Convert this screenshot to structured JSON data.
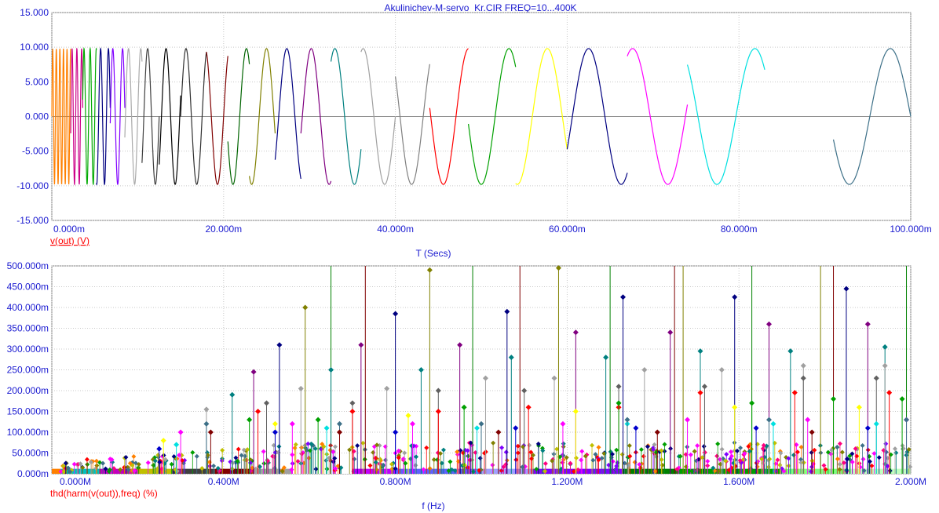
{
  "window_title": "Akulinichev-M-servo_Kr.CIR FREQ=10...400K",
  "chart_data": [
    {
      "type": "line",
      "title": "Akulinichev-M-servo_Kr.CIR FREQ=10...400K",
      "xlabel": "T (Secs)",
      "ylabel": "v(out) (V)",
      "xlim": [
        0,
        0.1
      ],
      "ylim": [
        -15,
        15
      ],
      "x_tick_labels": [
        "0.000m",
        "20.000m",
        "40.000m",
        "60.000m",
        "80.000m",
        "100.000m"
      ],
      "y_tick_labels": [
        "15.000",
        "10.000",
        "5.000",
        "0.000",
        "-5.000",
        "-10.000",
        "-15.000"
      ],
      "grid": true,
      "series": [
        {
          "amplitude": 9.8,
          "segments": [
            {
              "t_start": 0.0,
              "t_end": 0.0022,
              "freq": 2400,
              "color": "#ff8000"
            },
            {
              "t_start": 0.0022,
              "t_end": 0.0036,
              "freq": 1800,
              "color": "#cc0088"
            },
            {
              "t_start": 0.0036,
              "t_end": 0.0052,
              "freq": 1400,
              "color": "#00aa00"
            },
            {
              "t_start": 0.0052,
              "t_end": 0.0068,
              "freq": 1100,
              "color": "#000080"
            },
            {
              "t_start": 0.0068,
              "t_end": 0.0085,
              "freq": 880,
              "color": "#8000ff"
            },
            {
              "t_start": 0.0085,
              "t_end": 0.0105,
              "freq": 700,
              "color": "#aaaaaa"
            },
            {
              "t_start": 0.0105,
              "t_end": 0.0125,
              "freq": 560,
              "color": "#404040"
            },
            {
              "t_start": 0.0125,
              "t_end": 0.015,
              "freq": 470,
              "color": "#000000"
            },
            {
              "t_start": 0.015,
              "t_end": 0.018,
              "freq": 400,
              "color": "#303030"
            },
            {
              "t_start": 0.018,
              "t_end": 0.0205,
              "freq": 350,
              "color": "#800000"
            },
            {
              "t_start": 0.0205,
              "t_end": 0.023,
              "freq": 320,
              "color": "#006400"
            },
            {
              "t_start": 0.023,
              "t_end": 0.026,
              "freq": 290,
              "color": "#808000"
            },
            {
              "t_start": 0.026,
              "t_end": 0.029,
              "freq": 265,
              "color": "#000080"
            },
            {
              "t_start": 0.029,
              "t_end": 0.0325,
              "freq": 240,
              "color": "#800080"
            },
            {
              "t_start": 0.0325,
              "t_end": 0.036,
              "freq": 220,
              "color": "#008080"
            },
            {
              "t_start": 0.036,
              "t_end": 0.04,
              "freq": 200,
              "color": "#a0a0a0"
            },
            {
              "t_start": 0.04,
              "t_end": 0.044,
              "freq": 185,
              "color": "#808080"
            },
            {
              "t_start": 0.044,
              "t_end": 0.0485,
              "freq": 170,
              "color": "#ff0000"
            },
            {
              "t_start": 0.0485,
              "t_end": 0.054,
              "freq": 155,
              "color": "#00a000"
            },
            {
              "t_start": 0.054,
              "t_end": 0.06,
              "freq": 143,
              "color": "#ffff00"
            },
            {
              "t_start": 0.06,
              "t_end": 0.067,
              "freq": 132,
              "color": "#000080"
            },
            {
              "t_start": 0.067,
              "t_end": 0.074,
              "freq": 122,
              "color": "#ff00ff"
            },
            {
              "t_start": 0.074,
              "t_end": 0.083,
              "freq": 113,
              "color": "#00e0e0"
            },
            {
              "t_start": 0.091,
              "t_end": 0.1,
              "freq": 105,
              "color": "#3d7088"
            }
          ]
        }
      ]
    },
    {
      "type": "scatter",
      "xlabel": "f (Hz)",
      "ylabel": "thd(harm(v(out)),freq) (%)",
      "xlim": [
        0,
        2000000
      ],
      "ylim": [
        0,
        0.5
      ],
      "x_tick_labels": [
        "0.000M",
        "0.400M",
        "0.800M",
        "1.200M",
        "1.600M",
        "2.000M"
      ],
      "y_tick_labels": [
        "500.000m",
        "450.000m",
        "400.000m",
        "350.000m",
        "300.000m",
        "250.000m",
        "200.000m",
        "150.000m",
        "100.000m",
        "50.000m",
        "0.000m"
      ],
      "grid": true,
      "stems_over_range": [
        {
          "x": 650000,
          "y": 0.5,
          "color": "#008000"
        },
        {
          "x": 730000,
          "y": 0.5,
          "color": "#800000"
        },
        {
          "x": 980000,
          "y": 0.5,
          "color": "#008000"
        },
        {
          "x": 1090000,
          "y": 0.5,
          "color": "#800000"
        },
        {
          "x": 1300000,
          "y": 0.5,
          "color": "#008000"
        },
        {
          "x": 1450000,
          "y": 0.5,
          "color": "#800000"
        },
        {
          "x": 1470000,
          "y": 0.5,
          "color": "#808000"
        },
        {
          "x": 1630000,
          "y": 0.5,
          "color": "#008000"
        },
        {
          "x": 1790000,
          "y": 0.5,
          "color": "#808000"
        },
        {
          "x": 1820000,
          "y": 0.5,
          "color": "#800000"
        },
        {
          "x": 1990000,
          "y": 0.5,
          "color": "#008000"
        }
      ],
      "stems": [
        {
          "x": 530000,
          "y": 0.31,
          "color": "#000080"
        },
        {
          "x": 590000,
          "y": 0.4,
          "color": "#808000"
        },
        {
          "x": 720000,
          "y": 0.31,
          "color": "#800080"
        },
        {
          "x": 800000,
          "y": 0.385,
          "color": "#000080"
        },
        {
          "x": 880000,
          "y": 0.49,
          "color": "#808000"
        },
        {
          "x": 950000,
          "y": 0.31,
          "color": "#800080"
        },
        {
          "x": 1060000,
          "y": 0.39,
          "color": "#000080"
        },
        {
          "x": 1180000,
          "y": 0.495,
          "color": "#808000"
        },
        {
          "x": 1220000,
          "y": 0.34,
          "color": "#800080"
        },
        {
          "x": 1330000,
          "y": 0.425,
          "color": "#000080"
        },
        {
          "x": 1440000,
          "y": 0.34,
          "color": "#800080"
        },
        {
          "x": 1590000,
          "y": 0.425,
          "color": "#000080"
        },
        {
          "x": 1670000,
          "y": 0.36,
          "color": "#800080"
        },
        {
          "x": 1850000,
          "y": 0.445,
          "color": "#000080"
        },
        {
          "x": 1900000,
          "y": 0.36,
          "color": "#800080"
        },
        {
          "x": 470000,
          "y": 0.245,
          "color": "#800080"
        },
        {
          "x": 420000,
          "y": 0.19,
          "color": "#008080"
        },
        {
          "x": 650000,
          "y": 0.25,
          "color": "#008080"
        },
        {
          "x": 860000,
          "y": 0.25,
          "color": "#008080"
        },
        {
          "x": 1070000,
          "y": 0.28,
          "color": "#008080"
        },
        {
          "x": 1290000,
          "y": 0.28,
          "color": "#008080"
        },
        {
          "x": 1510000,
          "y": 0.295,
          "color": "#008080"
        },
        {
          "x": 1720000,
          "y": 0.295,
          "color": "#008080"
        },
        {
          "x": 1940000,
          "y": 0.305,
          "color": "#008080"
        },
        {
          "x": 360000,
          "y": 0.155,
          "color": "#a0a0a0"
        },
        {
          "x": 580000,
          "y": 0.205,
          "color": "#a0a0a0"
        },
        {
          "x": 780000,
          "y": 0.205,
          "color": "#a0a0a0"
        },
        {
          "x": 1010000,
          "y": 0.23,
          "color": "#a0a0a0"
        },
        {
          "x": 1170000,
          "y": 0.23,
          "color": "#a0a0a0"
        },
        {
          "x": 1380000,
          "y": 0.25,
          "color": "#a0a0a0"
        },
        {
          "x": 1560000,
          "y": 0.25,
          "color": "#a0a0a0"
        },
        {
          "x": 1750000,
          "y": 0.26,
          "color": "#a0a0a0"
        },
        {
          "x": 1940000,
          "y": 0.26,
          "color": "#a0a0a0"
        },
        {
          "x": 500000,
          "y": 0.17,
          "color": "#606060"
        },
        {
          "x": 700000,
          "y": 0.17,
          "color": "#606060"
        },
        {
          "x": 900000,
          "y": 0.2,
          "color": "#606060"
        },
        {
          "x": 1100000,
          "y": 0.2,
          "color": "#606060"
        },
        {
          "x": 1320000,
          "y": 0.21,
          "color": "#606060"
        },
        {
          "x": 1520000,
          "y": 0.21,
          "color": "#606060"
        },
        {
          "x": 1750000,
          "y": 0.23,
          "color": "#606060"
        },
        {
          "x": 1920000,
          "y": 0.23,
          "color": "#606060"
        },
        {
          "x": 480000,
          "y": 0.15,
          "color": "#ff0000"
        },
        {
          "x": 700000,
          "y": 0.15,
          "color": "#ff0000"
        },
        {
          "x": 900000,
          "y": 0.15,
          "color": "#ff0000"
        },
        {
          "x": 1110000,
          "y": 0.16,
          "color": "#ff0000"
        },
        {
          "x": 1320000,
          "y": 0.16,
          "color": "#ff0000"
        },
        {
          "x": 1510000,
          "y": 0.195,
          "color": "#ff0000"
        },
        {
          "x": 1730000,
          "y": 0.195,
          "color": "#ff0000"
        },
        {
          "x": 1950000,
          "y": 0.195,
          "color": "#ff0000"
        },
        {
          "x": 460000,
          "y": 0.13,
          "color": "#00a000"
        },
        {
          "x": 620000,
          "y": 0.13,
          "color": "#00a000"
        },
        {
          "x": 960000,
          "y": 0.16,
          "color": "#00a000"
        },
        {
          "x": 1320000,
          "y": 0.17,
          "color": "#00a000"
        },
        {
          "x": 1630000,
          "y": 0.17,
          "color": "#00a000"
        },
        {
          "x": 1820000,
          "y": 0.18,
          "color": "#00a000"
        },
        {
          "x": 1980000,
          "y": 0.18,
          "color": "#00a000"
        },
        {
          "x": 260000,
          "y": 0.08,
          "color": "#ffff00"
        },
        {
          "x": 520000,
          "y": 0.12,
          "color": "#ffff00"
        },
        {
          "x": 830000,
          "y": 0.14,
          "color": "#ffff00"
        },
        {
          "x": 1220000,
          "y": 0.15,
          "color": "#ffff00"
        },
        {
          "x": 1590000,
          "y": 0.16,
          "color": "#ffff00"
        },
        {
          "x": 1880000,
          "y": 0.16,
          "color": "#ffff00"
        },
        {
          "x": 300000,
          "y": 0.1,
          "color": "#ff00ff"
        },
        {
          "x": 560000,
          "y": 0.12,
          "color": "#ff00ff"
        },
        {
          "x": 840000,
          "y": 0.12,
          "color": "#ff00ff"
        },
        {
          "x": 1190000,
          "y": 0.12,
          "color": "#ff00ff"
        },
        {
          "x": 1480000,
          "y": 0.13,
          "color": "#ff00ff"
        },
        {
          "x": 1760000,
          "y": 0.13,
          "color": "#ff00ff"
        },
        {
          "x": 1990000,
          "y": 0.13,
          "color": "#ff00ff"
        },
        {
          "x": 290000,
          "y": 0.07,
          "color": "#00e0e0"
        },
        {
          "x": 640000,
          "y": 0.11,
          "color": "#00e0e0"
        },
        {
          "x": 990000,
          "y": 0.11,
          "color": "#00e0e0"
        },
        {
          "x": 1340000,
          "y": 0.12,
          "color": "#00e0e0"
        },
        {
          "x": 1680000,
          "y": 0.12,
          "color": "#00e0e0"
        },
        {
          "x": 1920000,
          "y": 0.12,
          "color": "#00e0e0"
        },
        {
          "x": 360000,
          "y": 0.12,
          "color": "#3d7088"
        },
        {
          "x": 670000,
          "y": 0.12,
          "color": "#3d7088"
        },
        {
          "x": 1000000,
          "y": 0.12,
          "color": "#3d7088"
        },
        {
          "x": 1340000,
          "y": 0.13,
          "color": "#3d7088"
        },
        {
          "x": 1670000,
          "y": 0.13,
          "color": "#3d7088"
        },
        {
          "x": 1990000,
          "y": 0.13,
          "color": "#3d7088"
        },
        {
          "x": 250000,
          "y": 0.06,
          "color": "#0000cc"
        },
        {
          "x": 520000,
          "y": 0.1,
          "color": "#0000cc"
        },
        {
          "x": 800000,
          "y": 0.1,
          "color": "#0000cc"
        },
        {
          "x": 1080000,
          "y": 0.11,
          "color": "#0000cc"
        },
        {
          "x": 1360000,
          "y": 0.11,
          "color": "#0000cc"
        },
        {
          "x": 1640000,
          "y": 0.11,
          "color": "#0000cc"
        },
        {
          "x": 1900000,
          "y": 0.11,
          "color": "#0000cc"
        },
        {
          "x": 370000,
          "y": 0.1,
          "color": "#800000"
        },
        {
          "x": 670000,
          "y": 0.1,
          "color": "#800000"
        },
        {
          "x": 1040000,
          "y": 0.1,
          "color": "#800000"
        },
        {
          "x": 1410000,
          "y": 0.1,
          "color": "#800000"
        },
        {
          "x": 1770000,
          "y": 0.1,
          "color": "#800000"
        }
      ],
      "noise": {
        "y_min": 0.005,
        "y_max": 0.075,
        "count": 520,
        "colors": [
          "#ff00ff",
          "#ff8000",
          "#c0c000",
          "#808000",
          "#000080",
          "#3d7088",
          "#ff0000",
          "#8000ff",
          "#008080",
          "#a0a0a0",
          "#00a000",
          "#ff0080"
        ]
      },
      "bottom_band": [
        {
          "f_start": 0,
          "f_end": 20000,
          "color": "#ff8000"
        },
        {
          "f_start": 20000,
          "f_end": 110000,
          "color": "#00c0c0"
        },
        {
          "f_start": 110000,
          "f_end": 200000,
          "color": "#c000c0"
        },
        {
          "f_start": 200000,
          "f_end": 280000,
          "color": "#c0c000"
        },
        {
          "f_start": 280000,
          "f_end": 380000,
          "color": "#404040"
        },
        {
          "f_start": 380000,
          "f_end": 470000,
          "color": "#800000"
        },
        {
          "f_start": 470000,
          "f_end": 560000,
          "color": "#a0a0a0"
        },
        {
          "f_start": 560000,
          "f_end": 700000,
          "color": "#ffffff"
        },
        {
          "f_start": 700000,
          "f_end": 800000,
          "color": "#c000ff"
        },
        {
          "f_start": 800000,
          "f_end": 1000000,
          "color": "#6060ff"
        },
        {
          "f_start": 1000000,
          "f_end": 1120000,
          "color": "#a0a0ff"
        },
        {
          "f_start": 1120000,
          "f_end": 1330000,
          "color": "#8000ff"
        },
        {
          "f_start": 1330000,
          "f_end": 1460000,
          "color": "#008000"
        },
        {
          "f_start": 1460000,
          "f_end": 1700000,
          "color": "#00a000"
        },
        {
          "f_start": 1700000,
          "f_end": 1850000,
          "color": "#80ff80"
        },
        {
          "f_start": 1850000,
          "f_end": 2000000,
          "color": "#c0ffc0"
        }
      ]
    }
  ]
}
